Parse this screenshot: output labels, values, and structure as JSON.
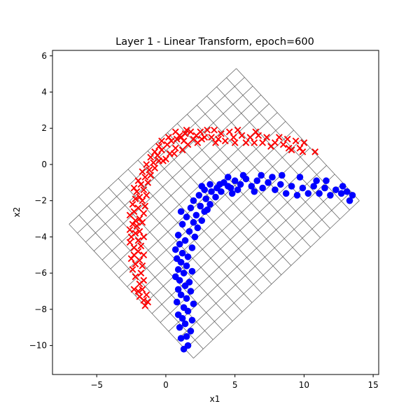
{
  "chart_data": {
    "type": "scatter",
    "title": "Layer 1 - Linear Transform, epoch=600",
    "xlabel": "x1",
    "ylabel": "x2",
    "xlim": [
      -8.2,
      15.4
    ],
    "ylim": [
      -11.6,
      6.3
    ],
    "xticks": [
      -5,
      0,
      5,
      10,
      15
    ],
    "yticks": [
      6,
      4,
      2,
      0,
      -2,
      -4,
      -6,
      -8,
      -10
    ],
    "xtick_labels": [
      "−5",
      "0",
      "5",
      "10",
      "15"
    ],
    "ytick_labels": [
      "6",
      "4",
      "2",
      "0",
      "−2",
      "−4",
      "−6",
      "−8",
      "−10"
    ],
    "grid": false,
    "legend": "none",
    "transformed_grid": {
      "corners": [
        [
          -7.0,
          -3.3
        ],
        [
          5.1,
          5.3
        ],
        [
          14.0,
          -2.0
        ],
        [
          2.0,
          -10.7
        ]
      ],
      "divisions": [
        17,
        15
      ],
      "color": "#555555"
    },
    "series": [
      {
        "marker": "x",
        "color": "#ff0000",
        "points": [
          [
            -1.5,
            -7.8
          ],
          [
            -1.3,
            -7.6
          ],
          [
            -1.6,
            -7.5
          ],
          [
            -1.9,
            -7.3
          ],
          [
            -1.4,
            -7.2
          ],
          [
            -2.0,
            -7.0
          ],
          [
            -1.7,
            -6.9
          ],
          [
            -2.3,
            -6.9
          ],
          [
            -1.9,
            -6.6
          ],
          [
            -1.6,
            -6.4
          ],
          [
            -2.2,
            -6.2
          ],
          [
            -1.8,
            -6.0
          ],
          [
            -2.4,
            -5.8
          ],
          [
            -1.7,
            -5.6
          ],
          [
            -2.2,
            -5.5
          ],
          [
            -1.9,
            -5.3
          ],
          [
            -2.5,
            -5.2
          ],
          [
            -2.3,
            -5.0
          ],
          [
            -1.6,
            -5.0
          ],
          [
            -2.0,
            -4.8
          ],
          [
            -2.3,
            -4.6
          ],
          [
            -1.8,
            -4.5
          ],
          [
            -2.6,
            -4.3
          ],
          [
            -2.0,
            -4.2
          ],
          [
            -2.5,
            -4.0
          ],
          [
            -1.6,
            -4.0
          ],
          [
            -2.2,
            -3.8
          ],
          [
            -1.9,
            -3.7
          ],
          [
            -2.6,
            -3.6
          ],
          [
            -2.1,
            -3.4
          ],
          [
            -2.4,
            -3.3
          ],
          [
            -1.7,
            -3.2
          ],
          [
            -2.2,
            -3.1
          ],
          [
            -1.9,
            -3.0
          ],
          [
            -2.6,
            -2.8
          ],
          [
            -1.6,
            -2.7
          ],
          [
            -2.3,
            -2.6
          ],
          [
            -2.0,
            -2.4
          ],
          [
            -1.5,
            -2.3
          ],
          [
            -2.4,
            -2.2
          ],
          [
            -1.7,
            -2.0
          ],
          [
            -2.2,
            -1.9
          ],
          [
            -1.9,
            -1.8
          ],
          [
            -1.4,
            -1.7
          ],
          [
            -2.1,
            -1.5
          ],
          [
            -1.6,
            -1.4
          ],
          [
            -2.3,
            -1.3
          ],
          [
            -1.8,
            -1.1
          ],
          [
            -1.3,
            -1.0
          ],
          [
            -2.0,
            -0.9
          ],
          [
            -1.5,
            -0.7
          ],
          [
            -1.1,
            -0.6
          ],
          [
            -1.7,
            -0.4
          ],
          [
            -1.2,
            -0.3
          ],
          [
            -0.8,
            -0.2
          ],
          [
            -1.4,
            0.0
          ],
          [
            -0.9,
            0.1
          ],
          [
            -0.5,
            0.2
          ],
          [
            -1.1,
            0.4
          ],
          [
            -0.6,
            0.5
          ],
          [
            -0.2,
            0.2
          ],
          [
            -0.8,
            0.7
          ],
          [
            -0.3,
            0.8
          ],
          [
            0.0,
            0.3
          ],
          [
            -0.5,
            1.0
          ],
          [
            0.1,
            1.1
          ],
          [
            0.3,
            0.6
          ],
          [
            -0.3,
            1.3
          ],
          [
            0.4,
            1.3
          ],
          [
            0.7,
            0.9
          ],
          [
            0.2,
            1.5
          ],
          [
            0.8,
            1.4
          ],
          [
            0.6,
            0.6
          ],
          [
            1.0,
            1.6
          ],
          [
            1.2,
            0.8
          ],
          [
            0.7,
            1.8
          ],
          [
            1.4,
            1.7
          ],
          [
            1.6,
            1.1
          ],
          [
            1.1,
            1.5
          ],
          [
            1.8,
            1.8
          ],
          [
            2.0,
            1.4
          ],
          [
            1.5,
            1.9
          ],
          [
            2.2,
            1.6
          ],
          [
            2.5,
            1.8
          ],
          [
            2.3,
            1.2
          ],
          [
            2.8,
            1.5
          ],
          [
            3.0,
            1.9
          ],
          [
            3.3,
            1.5
          ],
          [
            3.5,
            1.9
          ],
          [
            3.8,
            1.4
          ],
          [
            4.0,
            1.7
          ],
          [
            4.3,
            1.3
          ],
          [
            4.6,
            1.8
          ],
          [
            4.9,
            1.5
          ],
          [
            5.2,
            1.9
          ],
          [
            5.5,
            1.6
          ],
          [
            5.8,
            1.2
          ],
          [
            6.1,
            1.5
          ],
          [
            6.4,
            1.2
          ],
          [
            6.7,
            1.6
          ],
          [
            7.0,
            1.2
          ],
          [
            7.3,
            1.5
          ],
          [
            7.6,
            1.0
          ],
          [
            7.9,
            1.2
          ],
          [
            8.2,
            1.5
          ],
          [
            8.5,
            1.1
          ],
          [
            8.8,
            1.4
          ],
          [
            9.1,
            0.8
          ],
          [
            9.4,
            1.3
          ],
          [
            9.7,
            0.9
          ],
          [
            10.0,
            1.2
          ],
          [
            9.9,
            0.7
          ],
          [
            10.8,
            0.7
          ],
          [
            5.0,
            1.2
          ],
          [
            6.5,
            1.8
          ],
          [
            8.9,
            0.9
          ],
          [
            3.6,
            1.2
          ],
          [
            2.6,
            1.4
          ],
          [
            1.3,
            1.3
          ]
        ]
      },
      {
        "marker": "o",
        "color": "#0000ff",
        "points": [
          [
            1.3,
            -10.2
          ],
          [
            1.6,
            -10.0
          ],
          [
            1.1,
            -9.6
          ],
          [
            1.5,
            -9.5
          ],
          [
            1.8,
            -9.2
          ],
          [
            1.0,
            -9.0
          ],
          [
            1.4,
            -8.8
          ],
          [
            1.9,
            -8.6
          ],
          [
            1.2,
            -8.5
          ],
          [
            0.9,
            -8.3
          ],
          [
            1.6,
            -8.1
          ],
          [
            1.3,
            -7.9
          ],
          [
            2.0,
            -7.7
          ],
          [
            0.8,
            -7.6
          ],
          [
            1.5,
            -7.4
          ],
          [
            1.1,
            -7.2
          ],
          [
            1.8,
            -7.0
          ],
          [
            0.9,
            -6.9
          ],
          [
            1.4,
            -6.7
          ],
          [
            1.7,
            -6.5
          ],
          [
            1.0,
            -6.4
          ],
          [
            0.7,
            -6.2
          ],
          [
            1.3,
            -6.0
          ],
          [
            1.9,
            -5.9
          ],
          [
            0.9,
            -5.8
          ],
          [
            1.5,
            -5.6
          ],
          [
            1.1,
            -5.4
          ],
          [
            0.8,
            -5.2
          ],
          [
            1.6,
            -5.1
          ],
          [
            1.2,
            -4.9
          ],
          [
            0.7,
            -4.7
          ],
          [
            1.9,
            -4.6
          ],
          [
            1.0,
            -4.4
          ],
          [
            1.4,
            -4.2
          ],
          [
            2.1,
            -4.0
          ],
          [
            0.9,
            -3.9
          ],
          [
            1.7,
            -3.7
          ],
          [
            2.3,
            -3.5
          ],
          [
            1.2,
            -3.3
          ],
          [
            2.0,
            -3.2
          ],
          [
            2.6,
            -3.1
          ],
          [
            1.5,
            -2.9
          ],
          [
            2.2,
            -2.8
          ],
          [
            1.1,
            -2.6
          ],
          [
            2.8,
            -2.6
          ],
          [
            1.8,
            -2.4
          ],
          [
            2.5,
            -2.3
          ],
          [
            3.2,
            -2.2
          ],
          [
            2.0,
            -2.0
          ],
          [
            2.9,
            -1.9
          ],
          [
            3.6,
            -1.8
          ],
          [
            2.4,
            -1.7
          ],
          [
            3.3,
            -1.5
          ],
          [
            4.0,
            -1.5
          ],
          [
            2.8,
            -1.4
          ],
          [
            3.7,
            -1.3
          ],
          [
            4.5,
            -1.2
          ],
          [
            3.2,
            -1.1
          ],
          [
            4.2,
            -1.0
          ],
          [
            5.0,
            -0.9
          ],
          [
            4.7,
            -1.3
          ],
          [
            5.4,
            -1.1
          ],
          [
            5.8,
            -0.8
          ],
          [
            6.2,
            -1.2
          ],
          [
            6.6,
            -0.9
          ],
          [
            7.0,
            -1.3
          ],
          [
            7.4,
            -1.0
          ],
          [
            7.9,
            -1.4
          ],
          [
            8.3,
            -1.1
          ],
          [
            8.7,
            -1.6
          ],
          [
            9.1,
            -1.2
          ],
          [
            9.5,
            -1.7
          ],
          [
            9.9,
            -1.3
          ],
          [
            10.3,
            -1.6
          ],
          [
            10.7,
            -1.2
          ],
          [
            11.1,
            -1.6
          ],
          [
            11.5,
            -1.3
          ],
          [
            11.9,
            -1.7
          ],
          [
            12.3,
            -1.4
          ],
          [
            12.7,
            -1.6
          ],
          [
            13.1,
            -1.5
          ],
          [
            13.5,
            -1.7
          ],
          [
            13.3,
            -2.0
          ],
          [
            6.4,
            -1.5
          ],
          [
            5.2,
            -1.4
          ],
          [
            7.7,
            -0.7
          ],
          [
            8.4,
            -0.6
          ],
          [
            9.7,
            -0.7
          ],
          [
            10.9,
            -0.9
          ],
          [
            4.5,
            -0.7
          ],
          [
            6.9,
            -0.6
          ],
          [
            5.6,
            -0.6
          ],
          [
            3.0,
            -2.5
          ],
          [
            2.6,
            -1.2
          ],
          [
            3.9,
            -1.1
          ],
          [
            4.8,
            -1.6
          ],
          [
            11.6,
            -0.9
          ],
          [
            12.8,
            -1.2
          ]
        ]
      }
    ]
  }
}
